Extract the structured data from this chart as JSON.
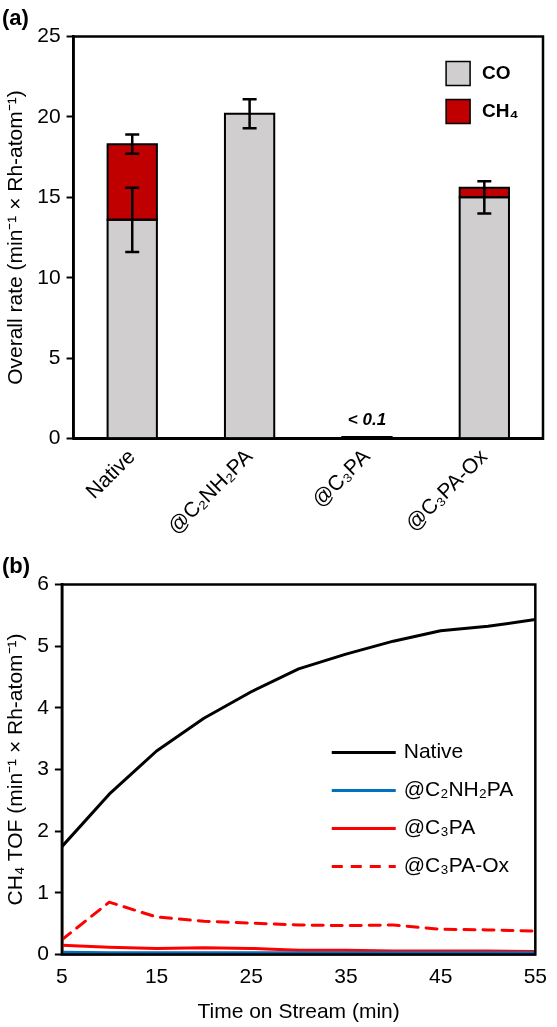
{
  "chart_data": [
    {
      "type": "bar",
      "title": "(a)",
      "ylabel": "Overall rate (min⁻¹ × Rh-atom⁻¹)",
      "categories": [
        "Native",
        "@C₂NH₂PA",
        "@C₃PA",
        "@C₃PA-Ox"
      ],
      "stacked": true,
      "series": [
        {
          "name": "CO",
          "color": "#d0cece",
          "values": [
            13.6,
            20.2,
            0.1,
            15.0
          ],
          "errors": [
            2.0,
            0.9,
            null,
            1.0
          ]
        },
        {
          "name": "CH₄",
          "color": "#c00000",
          "values": [
            4.7,
            null,
            null,
            0.6
          ],
          "errors": [
            0.6,
            null,
            null,
            null
          ]
        }
      ],
      "ylim": [
        0,
        25
      ],
      "yticks": [
        0,
        5,
        10,
        15,
        20,
        25
      ],
      "grid": false,
      "legend": "top right",
      "annotations": [
        {
          "text": "< 0.1",
          "x": "@C₃PA",
          "y": 0.1
        }
      ]
    },
    {
      "type": "line",
      "title": "(b)",
      "xlabel": "Time on Stream (min)",
      "ylabel": "CH₄ TOF (min⁻¹ × Rh-atom⁻¹)",
      "x": [
        5,
        10,
        15,
        20,
        25,
        30,
        35,
        40,
        45,
        50,
        55
      ],
      "series": [
        {
          "name": "Native",
          "color": "#000000",
          "values": [
            1.75,
            2.6,
            3.3,
            3.83,
            4.26,
            4.63,
            4.87,
            5.08,
            5.25,
            5.32,
            5.43
          ]
        },
        {
          "name": "@C₂NH₂PA",
          "color": "#0070c0",
          "values": [
            0.04,
            0.03,
            0.03,
            0.03,
            0.03,
            0.03,
            0.03,
            0.03,
            0.03,
            0.03,
            0.03
          ]
        },
        {
          "name": "@C₃PA",
          "color": "#ff0000",
          "values": [
            0.15,
            0.12,
            0.1,
            0.11,
            0.1,
            0.07,
            0.07,
            0.06,
            0.06,
            0.06,
            0.05
          ]
        },
        {
          "name": "@C₃PA-Ox",
          "color": "#ff0000",
          "line_style": "dashed",
          "values": [
            0.24,
            0.85,
            0.61,
            0.54,
            0.51,
            0.48,
            0.47,
            0.48,
            0.41,
            0.4,
            0.38
          ]
        }
      ],
      "xlim": [
        5,
        55
      ],
      "xticks": [
        5,
        15,
        25,
        35,
        45,
        55
      ],
      "ylim": [
        0,
        6
      ],
      "yticks": [
        0,
        1,
        2,
        3,
        4,
        5,
        6
      ],
      "grid": false,
      "marker": "none",
      "line_style": "solid",
      "legend": "right"
    }
  ]
}
